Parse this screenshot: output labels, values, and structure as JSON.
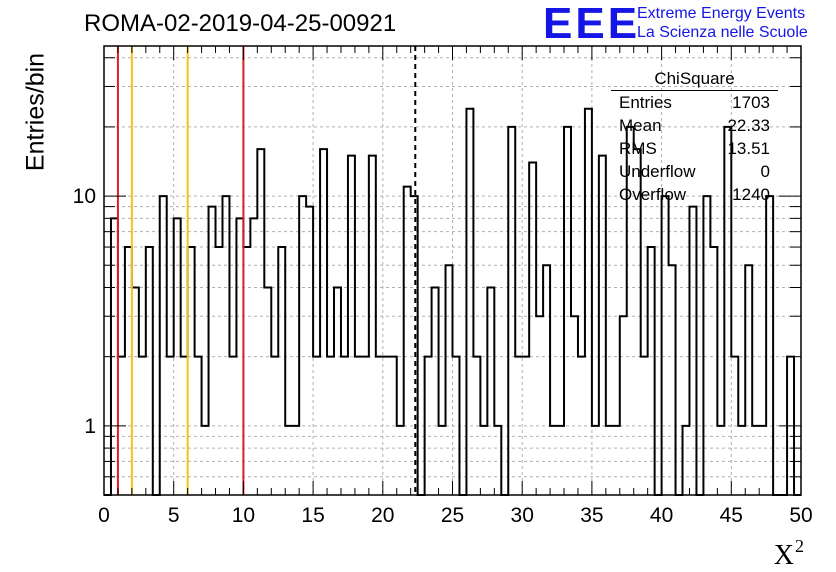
{
  "title": "ROMA-02-2019-04-25-00921",
  "logo": {
    "mark": "EEE",
    "line1": "Extreme Energy Events",
    "line2": "La Scienza nelle Scuole"
  },
  "stats": {
    "name": "ChiSquare",
    "rows": [
      {
        "label": "Entries",
        "value": "1703"
      },
      {
        "label": "Mean",
        "value": "22.33"
      },
      {
        "label": "RMS",
        "value": "13.51"
      },
      {
        "label": "Underflow",
        "value": "0"
      },
      {
        "label": "Overflow",
        "value": "1240"
      }
    ]
  },
  "chart_data": {
    "type": "bar",
    "histogram": true,
    "title": "ROMA-02-2019-04-25-00921",
    "xlabel": "X",
    "xlabel_superscript": "2",
    "ylabel": "Entries/bin",
    "xlim": [
      0,
      50
    ],
    "ylim": [
      0.5,
      45
    ],
    "yscale": "log",
    "grid": true,
    "bin_width": 0.5,
    "xticks": [
      0,
      5,
      10,
      15,
      20,
      25,
      30,
      35,
      40,
      45,
      50
    ],
    "ytick_labels": [
      "1",
      "10"
    ],
    "yticks": [
      1,
      10
    ],
    "values": [
      0,
      8,
      2,
      6,
      4,
      2,
      6,
      0,
      10,
      2,
      8,
      2,
      6,
      2,
      1,
      9,
      6,
      10,
      2,
      8,
      6,
      8,
      16,
      4,
      2,
      6,
      1,
      1,
      10,
      9,
      2,
      16,
      2,
      4,
      2,
      15,
      2,
      2,
      15,
      2,
      2,
      2,
      1,
      11,
      10,
      0,
      2,
      4,
      1,
      5,
      2,
      0,
      24,
      2,
      1,
      4,
      1,
      0,
      20,
      2,
      2,
      14,
      3,
      5,
      1,
      1,
      20,
      3,
      2,
      24,
      1,
      15,
      1,
      1,
      3,
      20,
      16,
      2,
      6,
      0,
      10,
      5,
      0,
      1,
      9,
      0,
      10,
      6,
      1,
      20,
      2,
      1,
      5,
      1,
      1,
      10,
      0,
      0,
      2,
      0
    ],
    "vertical_lines": [
      {
        "x": 1,
        "color": "#e02020",
        "style": "solid"
      },
      {
        "x": 2,
        "color": "#f2c21a",
        "style": "solid"
      },
      {
        "x": 6,
        "color": "#f2c21a",
        "style": "solid"
      },
      {
        "x": 10,
        "color": "#e02020",
        "style": "solid"
      },
      {
        "x": 22.33,
        "color": "#000000",
        "style": "dashed"
      }
    ]
  }
}
